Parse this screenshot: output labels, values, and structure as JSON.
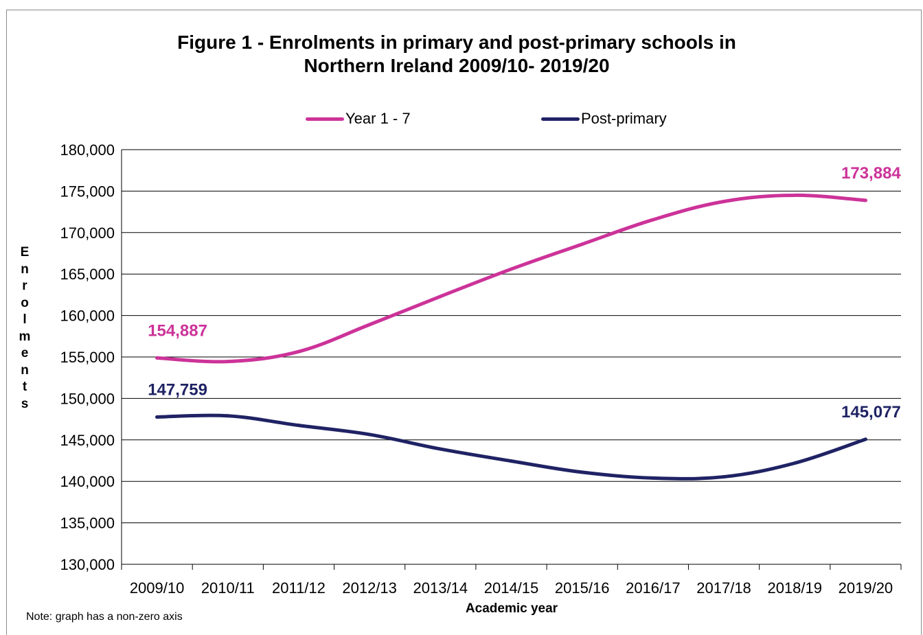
{
  "chart_data": {
    "type": "line",
    "title_line1": "Figure 1 - Enrolments in primary and post-primary schools in",
    "title_line2": "Northern Ireland 2009/10- 2019/20",
    "xlabel": "Academic year",
    "ylabel": "Enrolments",
    "note": "Note: graph has a non-zero axis",
    "categories": [
      "2009/10",
      "2010/11",
      "2011/12",
      "2012/13",
      "2013/14",
      "2014/15",
      "2015/16",
      "2016/17",
      "2017/18",
      "2018/19",
      "2019/20"
    ],
    "y_ticks": [
      "130,000",
      "135,000",
      "140,000",
      "145,000",
      "150,000",
      "155,000",
      "160,000",
      "165,000",
      "170,000",
      "175,000",
      "180,000"
    ],
    "ylim": [
      130000,
      180000
    ],
    "grid": true,
    "legend_position": "top",
    "series": [
      {
        "name": "Year 1 - 7",
        "color": "#cc3399",
        "values": [
          154887,
          154450,
          155650,
          158900,
          162300,
          165600,
          168600,
          171550,
          173750,
          174500,
          173884
        ],
        "labels": [
          {
            "index": 0,
            "text": "154,887"
          },
          {
            "index": 10,
            "text": "173,884"
          }
        ]
      },
      {
        "name": "Post-primary",
        "color": "#1f2364",
        "values": [
          147759,
          147900,
          146750,
          145650,
          143900,
          142450,
          141100,
          140400,
          140550,
          142200,
          145077
        ],
        "labels": [
          {
            "index": 0,
            "text": "147,759"
          },
          {
            "index": 10,
            "text": "145,077"
          }
        ]
      }
    ]
  }
}
